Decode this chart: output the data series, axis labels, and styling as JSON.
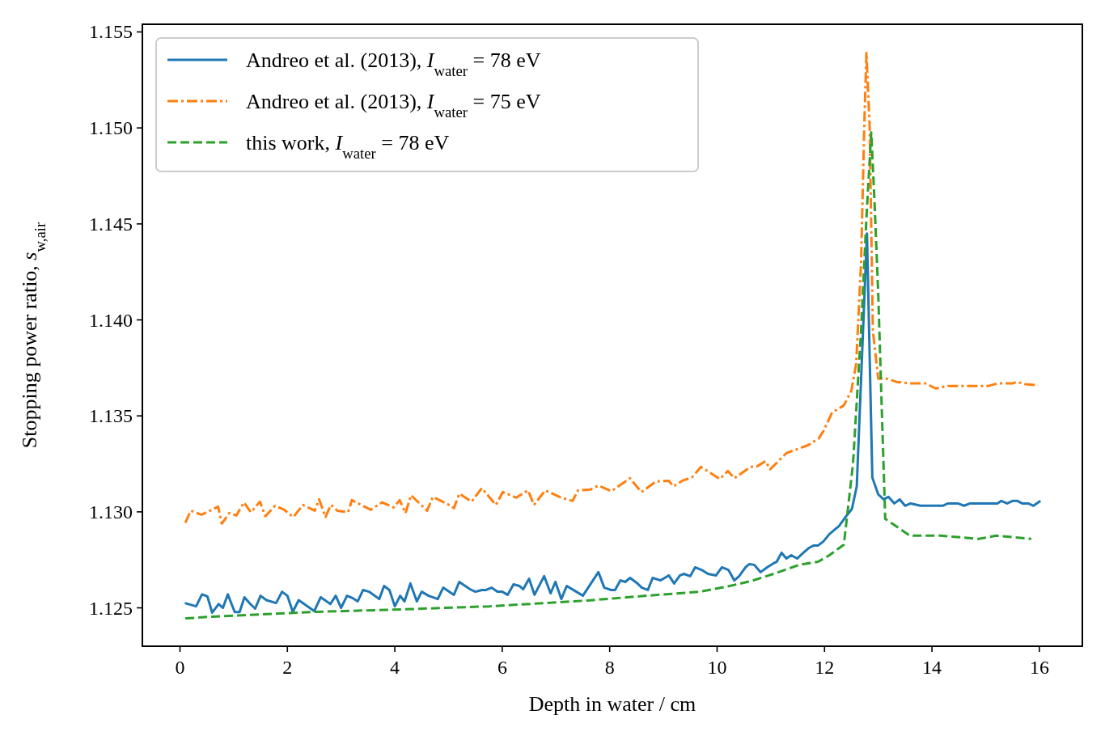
{
  "chart_data": {
    "type": "line",
    "xlabel": "Depth in water / cm",
    "ylabel": "Stopping power ratio, s$_{w,air}$",
    "xlim": [
      -0.7,
      16.8
    ],
    "ylim": [
      1.123,
      1.1554
    ],
    "xticks": [
      0,
      2,
      4,
      6,
      8,
      10,
      12,
      14,
      16
    ],
    "yticks": [
      {
        "value": 1.125,
        "label": "1.125"
      },
      {
        "value": 1.13,
        "label": "1.130"
      },
      {
        "value": 1.135,
        "label": "1.135"
      },
      {
        "value": 1.14,
        "label": "1.140"
      },
      {
        "value": 1.145,
        "label": "1.145"
      },
      {
        "value": 1.15,
        "label": "1.150"
      },
      {
        "value": 1.155,
        "label": "1.155"
      }
    ],
    "grid": false,
    "legend": "top left",
    "marker": "none",
    "series": [
      {
        "name": "Andreo et al. (2013), I$_{water}$ = 78 eV",
        "color": "#1f77b4",
        "line_style": "solid",
        "x": [
          0.09,
          0.3,
          0.41,
          0.51,
          0.6,
          0.72,
          0.8,
          0.89,
          1.02,
          1.11,
          1.2,
          1.31,
          1.4,
          1.5,
          1.61,
          1.79,
          1.9,
          2.0,
          2.1,
          2.21,
          2.5,
          2.62,
          2.8,
          2.9,
          3.0,
          3.11,
          3.22,
          3.31,
          3.41,
          3.52,
          3.71,
          3.8,
          3.9,
          4.0,
          4.1,
          4.18,
          4.29,
          4.41,
          4.5,
          4.63,
          4.8,
          4.9,
          5.1,
          5.2,
          5.4,
          5.5,
          5.62,
          5.7,
          5.8,
          5.91,
          6.0,
          6.1,
          6.21,
          6.32,
          6.39,
          6.5,
          6.6,
          6.78,
          6.9,
          6.99,
          7.1,
          7.2,
          7.38,
          7.5,
          7.79,
          7.9,
          8.03,
          8.1,
          8.2,
          8.29,
          8.38,
          8.5,
          8.6,
          8.71,
          8.8,
          8.95,
          9.1,
          9.2,
          9.31,
          9.38,
          9.5,
          9.59,
          9.71,
          9.83,
          9.98,
          10.09,
          10.21,
          10.32,
          10.41,
          10.53,
          10.6,
          10.69,
          10.81,
          10.93,
          11.05,
          11.11,
          11.2,
          11.29,
          11.38,
          11.49,
          11.59,
          11.71,
          11.8,
          11.88,
          11.98,
          12.09,
          12.27,
          12.39,
          12.51,
          12.6,
          12.79,
          12.89,
          13.0,
          13.1,
          13.19,
          13.3,
          13.4,
          13.5,
          13.6,
          13.79,
          14.2,
          14.3,
          14.48,
          14.6,
          14.71,
          15.22,
          15.29,
          15.4,
          15.5,
          15.59,
          15.68,
          15.79,
          15.89,
          16.02
        ],
        "values": [
          1.12525,
          1.12508,
          1.1257,
          1.1256,
          1.12475,
          1.1252,
          1.125,
          1.1257,
          1.12478,
          1.12478,
          1.12555,
          1.1252,
          1.12496,
          1.12563,
          1.1254,
          1.12525,
          1.12584,
          1.12563,
          1.12479,
          1.1254,
          1.12483,
          1.12555,
          1.1252,
          1.12563,
          1.125,
          1.12563,
          1.1255,
          1.12534,
          1.12593,
          1.12584,
          1.12546,
          1.12614,
          1.12593,
          1.12508,
          1.12563,
          1.12534,
          1.12627,
          1.12534,
          1.12584,
          1.12563,
          1.12546,
          1.12605,
          1.12568,
          1.12635,
          1.12597,
          1.12584,
          1.12593,
          1.12593,
          1.12605,
          1.12584,
          1.12584,
          1.12568,
          1.12622,
          1.12614,
          1.12597,
          1.12652,
          1.12568,
          1.12665,
          1.12576,
          1.12635,
          1.12546,
          1.12614,
          1.12584,
          1.12563,
          1.12686,
          1.12605,
          1.12593,
          1.12593,
          1.12643,
          1.12635,
          1.12656,
          1.12631,
          1.12605,
          1.12593,
          1.12656,
          1.12643,
          1.12669,
          1.12627,
          1.12669,
          1.12677,
          1.12665,
          1.12711,
          1.12698,
          1.12677,
          1.12669,
          1.12711,
          1.12698,
          1.12643,
          1.12665,
          1.12711,
          1.12728,
          1.12724,
          1.12686,
          1.12711,
          1.12732,
          1.1274,
          1.12787,
          1.12757,
          1.12774,
          1.12757,
          1.12783,
          1.12812,
          1.12825,
          1.12825,
          1.12846,
          1.12884,
          1.12926,
          1.12973,
          1.13015,
          1.13133,
          1.1445,
          1.13179,
          1.13091,
          1.13065,
          1.13078,
          1.13044,
          1.13065,
          1.13032,
          1.13044,
          1.13032,
          1.13032,
          1.13044,
          1.13044,
          1.13032,
          1.13044,
          1.13044,
          1.13057,
          1.13044,
          1.13057,
          1.13057,
          1.13044,
          1.13044,
          1.13032,
          1.13057
        ]
      },
      {
        "name": "Andreo et al. (2013), I$_{water}$ = 75 eV",
        "color": "#ff7f0e",
        "line_style": "dashdot",
        "x": [
          0.1,
          0.2,
          0.4,
          0.71,
          0.78,
          0.92,
          1.05,
          1.19,
          1.32,
          1.49,
          1.59,
          1.77,
          1.94,
          2.11,
          2.29,
          2.51,
          2.59,
          2.71,
          2.81,
          2.93,
          3.13,
          3.2,
          3.55,
          3.76,
          3.98,
          4.09,
          4.2,
          4.3,
          4.6,
          4.71,
          5.01,
          5.1,
          5.2,
          5.43,
          5.62,
          5.88,
          6.01,
          6.26,
          6.48,
          6.59,
          6.8,
          7.1,
          7.31,
          7.41,
          7.64,
          7.79,
          8.03,
          8.38,
          8.59,
          8.86,
          9.1,
          9.19,
          9.35,
          9.53,
          9.7,
          9.82,
          10.05,
          10.2,
          10.32,
          10.62,
          10.75,
          10.9,
          10.99,
          11.29,
          11.7,
          11.89,
          11.98,
          12.14,
          12.36,
          12.5,
          12.59,
          12.68,
          12.74,
          12.78,
          12.84,
          12.9,
          13.0,
          13.16,
          13.34,
          13.59,
          13.88,
          14.07,
          14.3,
          15.05,
          15.22,
          15.5,
          15.58,
          15.74,
          15.98
        ],
        "values": [
          1.12943,
          1.13006,
          1.12985,
          1.13027,
          1.12939,
          1.12994,
          1.12981,
          1.13049,
          1.12998,
          1.13053,
          1.12977,
          1.13032,
          1.13011,
          1.12973,
          1.13036,
          1.13006,
          1.13065,
          1.12973,
          1.13036,
          1.13006,
          1.12998,
          1.13061,
          1.13011,
          1.13049,
          1.13023,
          1.13061,
          1.12994,
          1.13087,
          1.13006,
          1.13078,
          1.13036,
          1.13019,
          1.13095,
          1.13053,
          1.13124,
          1.13036,
          1.13103,
          1.13074,
          1.13112,
          1.13036,
          1.13112,
          1.13074,
          1.13057,
          1.13112,
          1.13116,
          1.13137,
          1.13108,
          1.13175,
          1.13103,
          1.13158,
          1.13162,
          1.13133,
          1.13162,
          1.13179,
          1.13234,
          1.13213,
          1.13171,
          1.13213,
          1.13175,
          1.13234,
          1.13238,
          1.13264,
          1.13222,
          1.13306,
          1.13348,
          1.13382,
          1.1342,
          1.13517,
          1.13555,
          1.13631,
          1.13774,
          1.14297,
          1.15011,
          1.1539,
          1.15011,
          1.13943,
          1.13694,
          1.13694,
          1.13677,
          1.13669,
          1.13669,
          1.13643,
          1.13656,
          1.13656,
          1.13669,
          1.13669,
          1.13677,
          1.13665,
          1.1366
        ]
      },
      {
        "name": "this work, I$_{water}$ = 78 eV",
        "color": "#2ca02c",
        "line_style": "dashed",
        "x": [
          0.1,
          0.6,
          2.53,
          4.14,
          5.76,
          7.58,
          8.68,
          9.68,
          10.17,
          10.63,
          11.05,
          11.53,
          11.88,
          12.09,
          12.36,
          12.53,
          12.68,
          12.78,
          12.87,
          12.93,
          13.0,
          13.06,
          13.13,
          13.59,
          14.17,
          14.87,
          15.19,
          15.85
        ],
        "values": [
          1.12445,
          1.12454,
          1.12479,
          1.12492,
          1.12508,
          1.12538,
          1.12563,
          1.12584,
          1.1261,
          1.12639,
          1.12677,
          1.12724,
          1.1274,
          1.12774,
          1.12829,
          1.1325,
          1.13943,
          1.1453,
          1.14977,
          1.1462,
          1.14137,
          1.13589,
          1.12964,
          1.12876,
          1.12876,
          1.12859,
          1.12876,
          1.12859
        ]
      }
    ]
  }
}
